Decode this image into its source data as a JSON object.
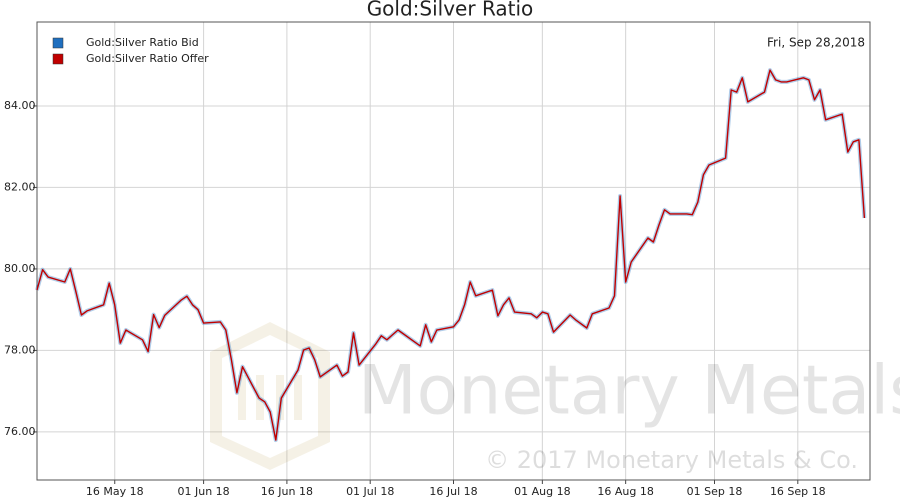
{
  "chart_data": {
    "type": "line",
    "title": "Gold:Silver Ratio",
    "annotation": "Fri, Sep 28,2018",
    "watermark": "Monetary Metals",
    "copyright": "© 2017 Monetary Metals & Co.",
    "x": [
      "2018-05-02",
      "2018-05-03",
      "2018-05-04",
      "2018-05-07",
      "2018-05-08",
      "2018-05-09",
      "2018-05-10",
      "2018-05-11",
      "2018-05-14",
      "2018-05-15",
      "2018-05-16",
      "2018-05-17",
      "2018-05-18",
      "2018-05-21",
      "2018-05-22",
      "2018-05-23",
      "2018-05-24",
      "2018-05-25",
      "2018-05-28",
      "2018-05-29",
      "2018-05-30",
      "2018-05-31",
      "2018-06-01",
      "2018-06-04",
      "2018-06-05",
      "2018-06-06",
      "2018-06-07",
      "2018-06-08",
      "2018-06-11",
      "2018-06-12",
      "2018-06-13",
      "2018-06-14",
      "2018-06-15",
      "2018-06-18",
      "2018-06-19",
      "2018-06-20",
      "2018-06-21",
      "2018-06-22",
      "2018-06-25",
      "2018-06-26",
      "2018-06-27",
      "2018-06-28",
      "2018-06-29",
      "2018-07-02",
      "2018-07-03",
      "2018-07-04",
      "2018-07-05",
      "2018-07-06",
      "2018-07-09",
      "2018-07-10",
      "2018-07-11",
      "2018-07-12",
      "2018-07-13",
      "2018-07-16",
      "2018-07-17",
      "2018-07-18",
      "2018-07-19",
      "2018-07-20",
      "2018-07-23",
      "2018-07-24",
      "2018-07-25",
      "2018-07-26",
      "2018-07-27",
      "2018-07-30",
      "2018-07-31",
      "2018-08-01",
      "2018-08-02",
      "2018-08-03",
      "2018-08-06",
      "2018-08-07",
      "2018-08-08",
      "2018-08-09",
      "2018-08-10",
      "2018-08-13",
      "2018-08-14",
      "2018-08-15",
      "2018-08-16",
      "2018-08-17",
      "2018-08-20",
      "2018-08-21",
      "2018-08-22",
      "2018-08-23",
      "2018-08-24",
      "2018-08-27",
      "2018-08-28",
      "2018-08-29",
      "2018-08-30",
      "2018-08-31",
      "2018-09-03",
      "2018-09-04",
      "2018-09-05",
      "2018-09-06",
      "2018-09-07",
      "2018-09-10",
      "2018-09-11",
      "2018-09-12",
      "2018-09-13",
      "2018-09-14",
      "2018-09-17",
      "2018-09-18",
      "2018-09-19",
      "2018-09-20",
      "2018-09-21",
      "2018-09-24",
      "2018-09-25",
      "2018-09-26",
      "2018-09-27",
      "2018-09-28"
    ],
    "series": [
      {
        "name": "Gold:Silver Ratio Bid",
        "color": "#1f6fbf",
        "values": [
          79.48,
          79.98,
          79.8,
          79.68,
          80.0,
          79.44,
          78.87,
          78.97,
          79.12,
          79.65,
          79.12,
          78.18,
          78.5,
          78.26,
          77.97,
          78.88,
          78.56,
          78.86,
          79.24,
          79.33,
          79.12,
          79.0,
          78.67,
          78.7,
          78.5,
          77.77,
          76.96,
          77.6,
          76.83,
          76.74,
          76.49,
          75.8,
          76.83,
          77.52,
          78.01,
          78.06,
          77.77,
          77.35,
          77.64,
          77.37,
          77.47,
          78.43,
          77.64,
          78.16,
          78.36,
          78.26,
          78.38,
          78.5,
          78.21,
          78.11,
          78.63,
          78.21,
          78.5,
          78.58,
          78.75,
          79.12,
          79.68,
          79.34,
          79.48,
          78.85,
          79.12,
          79.29,
          78.94,
          78.9,
          78.8,
          78.94,
          78.9,
          78.45,
          78.87,
          78.75,
          78.65,
          78.55,
          78.9,
          79.04,
          79.34,
          81.79,
          79.68,
          80.17,
          80.76,
          80.66,
          81.08,
          81.45,
          81.35,
          81.35,
          81.33,
          81.64,
          82.31,
          82.55,
          82.72,
          84.39,
          84.34,
          84.69,
          84.1,
          84.34,
          84.88,
          84.64,
          84.59,
          84.59,
          84.69,
          84.64,
          84.15,
          84.39,
          83.66,
          83.8,
          82.87,
          83.12,
          83.17,
          81.25
        ]
      },
      {
        "name": "Gold:Silver Ratio Offer",
        "color": "#c00000",
        "values": [
          79.48,
          79.98,
          79.8,
          79.68,
          80.0,
          79.44,
          78.87,
          78.97,
          79.12,
          79.65,
          79.12,
          78.18,
          78.5,
          78.26,
          77.97,
          78.88,
          78.56,
          78.86,
          79.24,
          79.33,
          79.12,
          79.0,
          78.67,
          78.7,
          78.5,
          77.77,
          76.96,
          77.6,
          76.83,
          76.74,
          76.49,
          75.8,
          76.83,
          77.52,
          78.01,
          78.06,
          77.77,
          77.35,
          77.64,
          77.37,
          77.47,
          78.43,
          77.64,
          78.16,
          78.36,
          78.26,
          78.38,
          78.5,
          78.21,
          78.11,
          78.63,
          78.21,
          78.5,
          78.58,
          78.75,
          79.12,
          79.68,
          79.34,
          79.48,
          78.85,
          79.12,
          79.29,
          78.94,
          78.9,
          78.8,
          78.94,
          78.9,
          78.45,
          78.87,
          78.75,
          78.65,
          78.55,
          78.9,
          79.04,
          79.34,
          81.79,
          79.68,
          80.17,
          80.76,
          80.66,
          81.08,
          81.45,
          81.35,
          81.35,
          81.33,
          81.64,
          82.31,
          82.55,
          82.72,
          84.39,
          84.34,
          84.69,
          84.1,
          84.34,
          84.88,
          84.64,
          84.59,
          84.59,
          84.69,
          84.64,
          84.15,
          84.39,
          83.66,
          83.8,
          82.87,
          83.12,
          83.17,
          81.25
        ]
      }
    ],
    "xlim": [
      "2018-05-02",
      "2018-09-29"
    ],
    "xticks": [
      {
        "value": "2018-05-16",
        "label": "16 May 18"
      },
      {
        "value": "2018-06-01",
        "label": "01 Jun 18"
      },
      {
        "value": "2018-06-16",
        "label": "16 Jun 18"
      },
      {
        "value": "2018-07-01",
        "label": "01 Jul 18"
      },
      {
        "value": "2018-07-16",
        "label": "16 Jul 18"
      },
      {
        "value": "2018-08-01",
        "label": "01 Aug 18"
      },
      {
        "value": "2018-08-16",
        "label": "16 Aug 18"
      },
      {
        "value": "2018-09-01",
        "label": "01 Sep 18"
      },
      {
        "value": "2018-09-16",
        "label": "16 Sep 18"
      }
    ],
    "ylim": [
      74.82,
      86.06
    ],
    "yticks": [
      {
        "value": 76,
        "label": "76.00"
      },
      {
        "value": 78,
        "label": "78.00"
      },
      {
        "value": 80,
        "label": "80.00"
      },
      {
        "value": 82,
        "label": "82.00"
      },
      {
        "value": 84,
        "label": "84.00"
      }
    ],
    "grid": true,
    "legend": "top-left"
  }
}
